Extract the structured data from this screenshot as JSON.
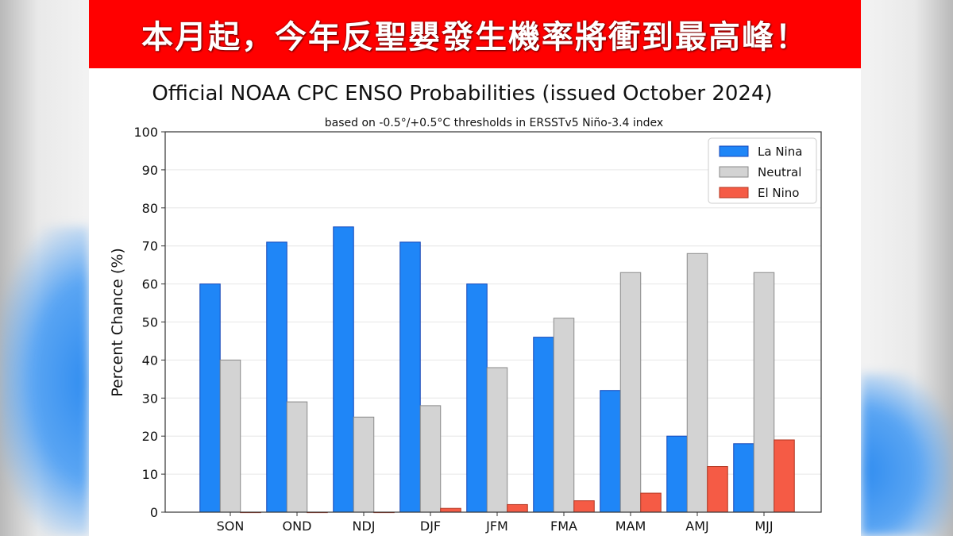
{
  "banner": {
    "text": "本月起，今年反聖嬰發生機率將衝到最高峰！"
  },
  "colors": {
    "banner": "#ff0000",
    "la_nina": "#1f86f7",
    "neutral": "#d3d3d3",
    "el_nino": "#f55b45"
  },
  "chart_data": {
    "type": "bar",
    "title": "Official NOAA CPC ENSO Probabilities (issued October 2024)",
    "subtitle": "based on -0.5°/+0.5°C thresholds in ERSSTv5 Niño-3.4 index",
    "xlabel": "",
    "ylabel": "Percent Chance (%)",
    "ylim": [
      0,
      100
    ],
    "yticks": [
      0,
      10,
      20,
      30,
      40,
      50,
      60,
      70,
      80,
      90,
      100
    ],
    "grid": true,
    "legend_position": "top-right",
    "categories": [
      "SON",
      "OND",
      "NDJ",
      "DJF",
      "JFM",
      "FMA",
      "MAM",
      "AMJ",
      "MJJ"
    ],
    "series": [
      {
        "name": "La Nina",
        "color": "#1f86f7",
        "values": [
          60,
          71,
          75,
          71,
          60,
          46,
          32,
          20,
          18
        ]
      },
      {
        "name": "Neutral",
        "color": "#d3d3d3",
        "values": [
          40,
          29,
          25,
          28,
          38,
          51,
          63,
          68,
          63
        ]
      },
      {
        "name": "El Nino",
        "color": "#f55b45",
        "values": [
          0,
          0,
          0,
          1,
          2,
          3,
          5,
          12,
          19
        ]
      }
    ]
  }
}
